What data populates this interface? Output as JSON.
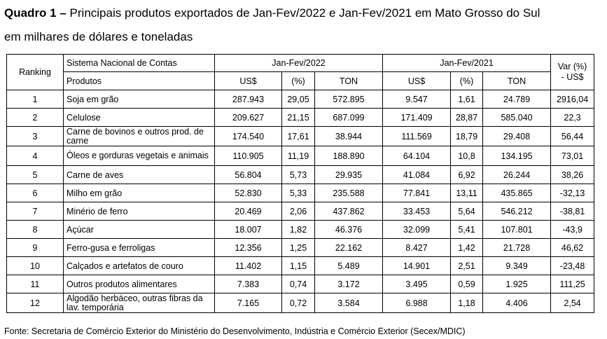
{
  "title": {
    "label": "Quadro 1 –",
    "text": "Principais produtos exportados de Jan-Fev/2022 e Jan-Fev/2021 em Mato Grosso do Sul",
    "line2": "em milhares de dólares e toneladas"
  },
  "headers": {
    "ranking": "Ranking",
    "sistema": "Sistema Nacional de Contas",
    "produtos": "Produtos",
    "period_2022": "Jan-Fev/2022",
    "period_2021": "Jan-Fev/2021",
    "var": "Var  (%)\n- US$",
    "us": "US$",
    "pct": "(%)",
    "ton": "TON"
  },
  "rows": [
    {
      "rank": "1",
      "product": "Soja em grão",
      "us22": "287.943",
      "pct22": "29,05",
      "ton22": "572.895",
      "us21": "9.547",
      "pct21": "1,61",
      "ton21": "24.789",
      "var": "2916,04"
    },
    {
      "rank": "2",
      "product": "Celulose",
      "us22": "209.627",
      "pct22": "21,15",
      "ton22": "687.099",
      "us21": "171.409",
      "pct21": "28,87",
      "ton21": "585.040",
      "var": "22,3"
    },
    {
      "rank": "3",
      "product": "Carne de bovinos e outros prod. de carne",
      "us22": "174.540",
      "pct22": "17,61",
      "ton22": "38.944",
      "us21": "111.569",
      "pct21": "18,79",
      "ton21": "29.408",
      "var": "56,44"
    },
    {
      "rank": "4",
      "product": "Óleos e gorduras vegetais e animais",
      "us22": "110.905",
      "pct22": "11,19",
      "ton22": "188.890",
      "us21": "64.104",
      "pct21": "10,8",
      "ton21": "134.195",
      "var": "73,01"
    },
    {
      "rank": "5",
      "product": "Carne de aves",
      "us22": "56.804",
      "pct22": "5,73",
      "ton22": "29.935",
      "us21": "41.084",
      "pct21": "6,92",
      "ton21": "26.244",
      "var": "38,26"
    },
    {
      "rank": "6",
      "product": "Milho em grão",
      "us22": "52.830",
      "pct22": "5,33",
      "ton22": "235.588",
      "us21": "77.841",
      "pct21": "13,11",
      "ton21": "435.865",
      "var": "-32,13"
    },
    {
      "rank": "7",
      "product": "Minério de ferro",
      "us22": "20.469",
      "pct22": "2,06",
      "ton22": "437.862",
      "us21": "33.453",
      "pct21": "5,64",
      "ton21": "546.212",
      "var": "-38,81"
    },
    {
      "rank": "8",
      "product": "Açúcar",
      "us22": "18.007",
      "pct22": "1,82",
      "ton22": "46.376",
      "us21": "32.099",
      "pct21": "5,41",
      "ton21": "107.801",
      "var": "-43,9"
    },
    {
      "rank": "9",
      "product": "Ferro-gusa e ferroligas",
      "us22": "12.356",
      "pct22": "1,25",
      "ton22": "22.162",
      "us21": "8.427",
      "pct21": "1,42",
      "ton21": "21.728",
      "var": "46,62"
    },
    {
      "rank": "10",
      "product": "Calçados e artefatos de couro",
      "us22": "11.402",
      "pct22": "1,15",
      "ton22": "5.489",
      "us21": "14.901",
      "pct21": "2,51",
      "ton21": "9.349",
      "var": "-23,48"
    },
    {
      "rank": "11",
      "product": "Outros produtos alimentares",
      "us22": "7.383",
      "pct22": "0,74",
      "ton22": "3.172",
      "us21": "3.495",
      "pct21": "0,59",
      "ton21": "1.925",
      "var": "111,25"
    },
    {
      "rank": "12",
      "product": "Algodão herbáceo, outras fibras da lav. temporária",
      "us22": "7.165",
      "pct22": "0,72",
      "ton22": "3.584",
      "us21": "6.988",
      "pct21": "1,18",
      "ton21": "4.406",
      "var": "2,54"
    }
  ],
  "footer": "Fonte: Secretaria de Comércio Exterior do Ministério do Desenvolvimento, Indústria e Comércio Exterior (Secex/MDIC)"
}
